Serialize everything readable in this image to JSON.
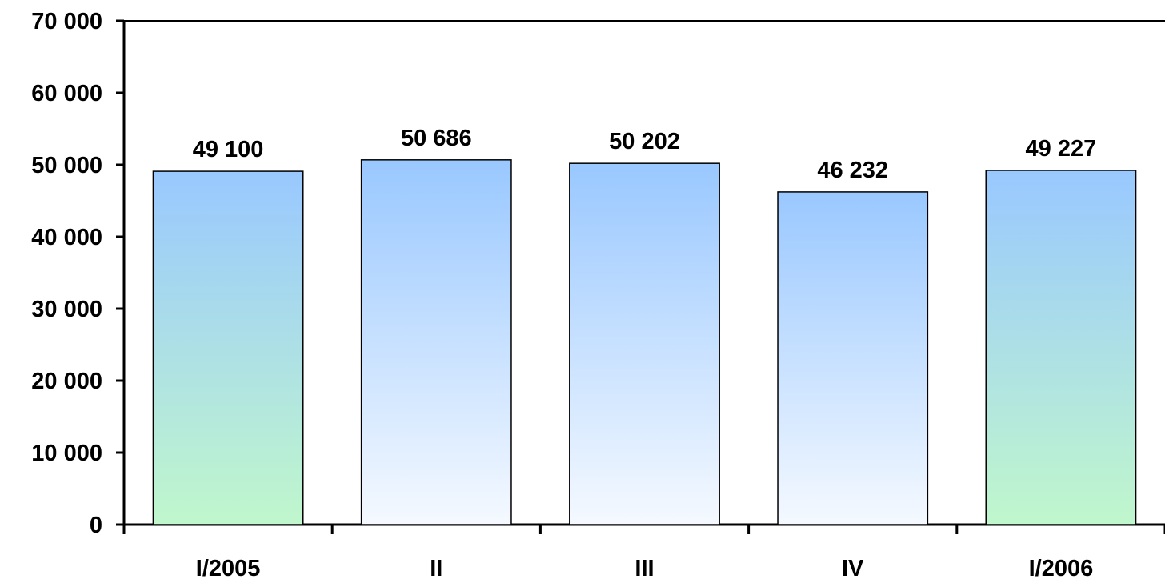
{
  "chart_data": {
    "type": "bar",
    "categories": [
      "I/2005",
      "II",
      "III",
      "IV",
      "I/2006"
    ],
    "values": [
      49100,
      50686,
      50202,
      46232,
      49227
    ],
    "value_labels": [
      "49 100",
      "50 686",
      "50 202",
      "46 232",
      "49 227"
    ],
    "ylim": [
      0,
      70000
    ],
    "yticks": [
      0,
      10000,
      20000,
      30000,
      40000,
      50000,
      60000,
      70000
    ],
    "ytick_labels": [
      "0",
      "10 000",
      "20 000",
      "30 000",
      "40 000",
      "50 000",
      "60 000",
      "70 000"
    ],
    "grid": false,
    "bar_styles": [
      "green-blue",
      "blue-white",
      "blue-white",
      "blue-white",
      "green-blue"
    ],
    "colors": {
      "blue": "#99c8ff",
      "green": "#c0f7cc",
      "white": "#f5f9ff",
      "outline": "#000000"
    }
  }
}
